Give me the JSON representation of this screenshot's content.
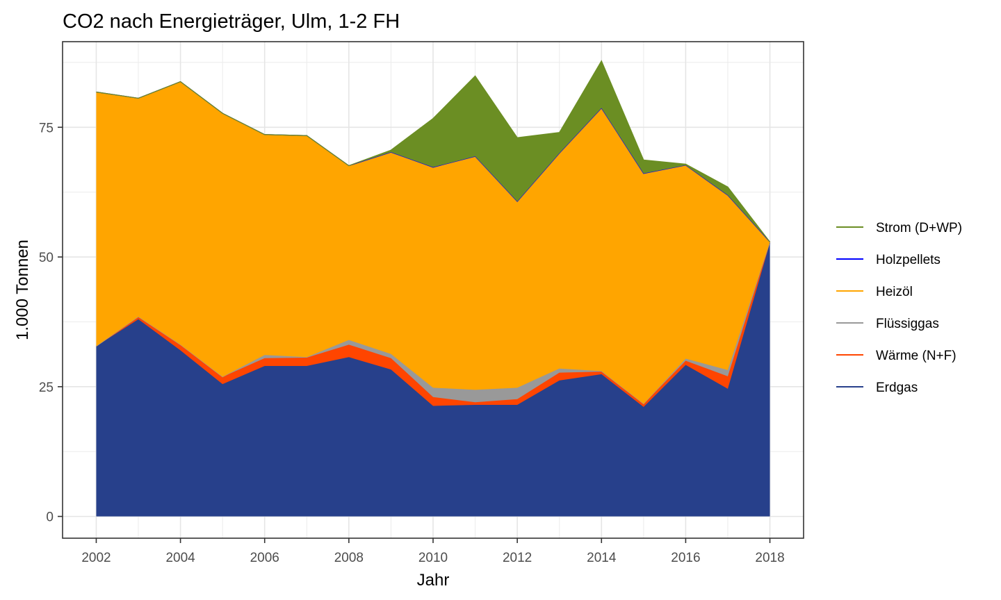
{
  "chart_data": {
    "type": "area",
    "stacked": true,
    "title": "CO2 nach Energieträger, Ulm, 1-2 FH",
    "xlabel": "Jahr",
    "ylabel": "1.000 Tonnen",
    "xlim": [
      2001.2,
      2018.8
    ],
    "ylim": [
      -4.2,
      91.5
    ],
    "x_ticks": [
      2002,
      2004,
      2006,
      2008,
      2010,
      2012,
      2014,
      2016,
      2018
    ],
    "x_tick_labels": [
      "2002",
      "2004",
      "2006",
      "2008",
      "2010",
      "2012",
      "2014",
      "2016",
      "2018"
    ],
    "y_ticks": [
      0,
      25,
      50,
      75
    ],
    "y_tick_labels": [
      "0",
      "25",
      "50",
      "75"
    ],
    "grid": true,
    "legend_position": "right",
    "x": [
      2002,
      2003,
      2004,
      2005,
      2006,
      2007,
      2008,
      2009,
      2010,
      2011,
      2012,
      2013,
      2014,
      2015,
      2016,
      2017,
      2018
    ],
    "series": [
      {
        "name": "Erdgas",
        "color": "#27408b",
        "values": [
          32.8,
          38.0,
          32.0,
          25.5,
          29.0,
          29.0,
          30.7,
          28.3,
          21.3,
          21.5,
          21.5,
          26.2,
          27.4,
          21.1,
          29.2,
          24.6,
          52.7
        ]
      },
      {
        "name": "Wärme (N+F)",
        "color": "#ff4500",
        "values": [
          0.0,
          0.5,
          1.1,
          1.4,
          1.5,
          1.6,
          2.4,
          2.2,
          1.7,
          0.5,
          1.1,
          1.5,
          0.5,
          0.6,
          0.8,
          2.4,
          0.2
        ]
      },
      {
        "name": "Flüssiggas",
        "color": "#999999",
        "values": [
          0.0,
          0.0,
          0.0,
          0.0,
          0.6,
          0.1,
          0.9,
          0.8,
          1.8,
          2.4,
          2.2,
          0.8,
          0.1,
          0.0,
          0.4,
          1.2,
          0.0
        ]
      },
      {
        "name": "Heizöl",
        "color": "#ffa500",
        "values": [
          49.0,
          42.1,
          50.7,
          50.8,
          42.5,
          42.7,
          33.6,
          38.9,
          42.4,
          45.0,
          35.9,
          41.5,
          50.7,
          44.4,
          37.3,
          33.7,
          0.0
        ]
      },
      {
        "name": "Holzpellets",
        "color": "#0000ff",
        "values": [
          0.0,
          0.0,
          0.0,
          0.0,
          0.0,
          0.0,
          0.0,
          0.0,
          0.1,
          0.0,
          0.0,
          0.0,
          0.0,
          0.0,
          0.0,
          0.0,
          0.0
        ]
      },
      {
        "name": "Strom (D+WP)",
        "color": "#6b8e23",
        "values": [
          0.0,
          0.0,
          0.0,
          0.0,
          0.0,
          0.0,
          0.0,
          0.4,
          9.4,
          15.5,
          12.3,
          4.0,
          9.1,
          2.6,
          0.2,
          1.6,
          0.0
        ]
      }
    ],
    "legend_order": [
      "Strom (D+WP)",
      "Holzpellets",
      "Heizöl",
      "Flüssiggas",
      "Wärme (N+F)",
      "Erdgas"
    ]
  }
}
